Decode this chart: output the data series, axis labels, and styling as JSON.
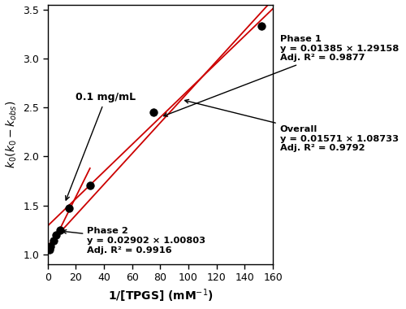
{
  "xlabel": "1/[TPGS] (mM⁻¹)",
  "ylabel": "$k_0(k_0-k_{obs})$",
  "xlim": [
    0,
    160
  ],
  "ylim": [
    0.9,
    3.55
  ],
  "xticks": [
    0,
    20,
    40,
    60,
    80,
    100,
    120,
    140,
    160
  ],
  "yticks": [
    1.0,
    1.5,
    2.0,
    2.5,
    3.0,
    3.5
  ],
  "data_points_x": [
    1,
    2,
    4,
    6,
    9,
    15,
    30,
    75,
    152
  ],
  "data_points_y": [
    1.05,
    1.08,
    1.14,
    1.2,
    1.25,
    1.47,
    1.7,
    2.45,
    3.33
  ],
  "phase1_slope": 0.01385,
  "phase1_intercept": 1.29158,
  "phase1_xrange": [
    0,
    160
  ],
  "phase2_slope": 0.02902,
  "phase2_intercept": 1.00803,
  "phase2_xrange": [
    0,
    30
  ],
  "overall_slope": 0.01571,
  "overall_intercept": 1.08733,
  "overall_xrange": [
    0,
    160
  ],
  "line_color": "#cc0000",
  "point_color": "black",
  "background_color": "white"
}
